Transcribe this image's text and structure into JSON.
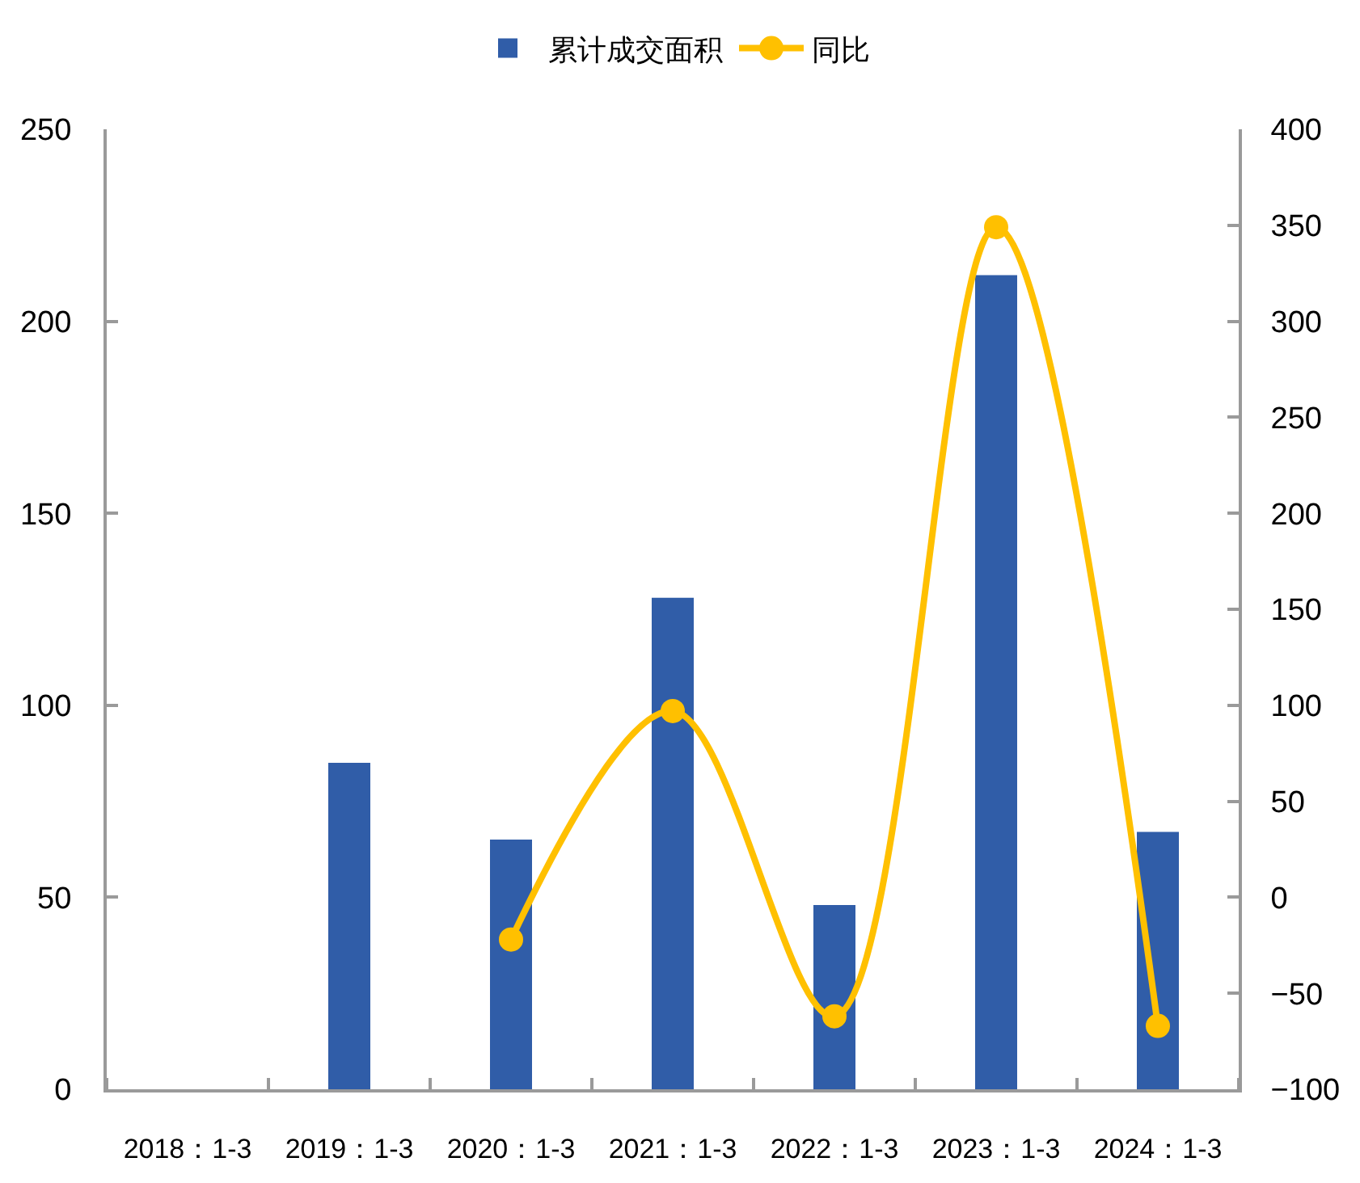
{
  "chart_data": {
    "type": "bar",
    "categories": [
      "2018：1-3",
      "2019：1-3",
      "2020：1-3",
      "2021：1-3",
      "2022：1-3",
      "2023：1-3",
      "2024：1-3"
    ],
    "series": [
      {
        "name": "累计成交面积",
        "color": "#305da8",
        "values": [
          null,
          85,
          65,
          128,
          48,
          212,
          67
        ]
      },
      {
        "name": "同比",
        "type": "line",
        "axis": "y2",
        "color": "#ffc000",
        "marker": "circle",
        "line_style": "solid",
        "values": [
          null,
          null,
          -22,
          97,
          -62,
          349,
          -67
        ]
      }
    ],
    "ylim": [
      0,
      250
    ],
    "yticks": [
      0,
      50,
      100,
      150,
      200,
      250
    ],
    "y2lim": [
      -100,
      400
    ],
    "y2ticks": [
      {
        "value": -100,
        "label": "−100"
      },
      {
        "value": -50,
        "label": "−50"
      },
      0,
      50,
      100,
      150,
      200,
      250,
      300,
      350,
      400
    ],
    "legend": "top"
  }
}
